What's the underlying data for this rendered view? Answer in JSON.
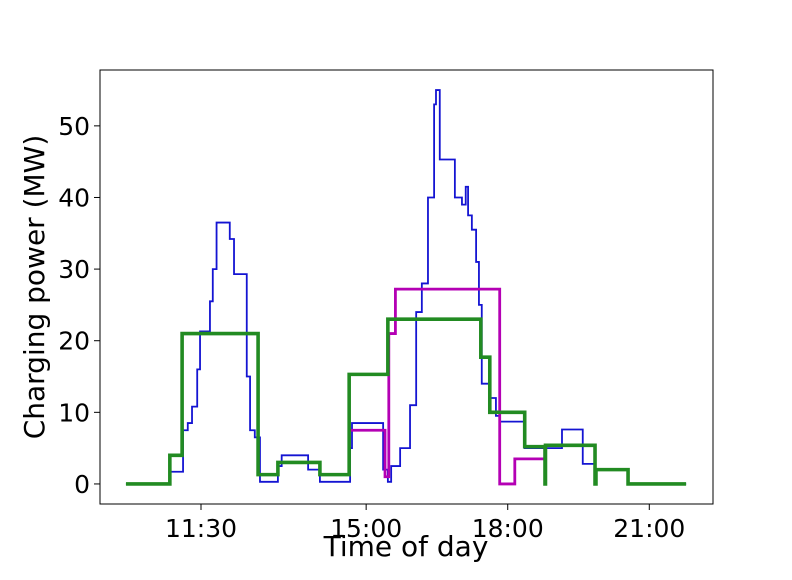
{
  "chart_data": {
    "type": "line",
    "drawstyle": "steps-post",
    "xlabel": "Time of day",
    "ylabel": "Charging power (MW)",
    "xlim": [
      9.36,
      22.35
    ],
    "ylim": [
      -2.8,
      57.8
    ],
    "xticks": [
      {
        "value": 11.5,
        "label": "11:30"
      },
      {
        "value": 15,
        "label": "15:00"
      },
      {
        "value": 18,
        "label": "18:00"
      },
      {
        "value": 21,
        "label": "21:00"
      }
    ],
    "yticks": [
      0,
      10,
      20,
      30,
      40,
      50
    ],
    "series": [
      {
        "color": "#1414d2",
        "width": 1.8,
        "x": [
          9.91,
          10.84,
          11.12,
          11.22,
          11.31,
          11.42,
          11.48,
          11.69,
          11.75,
          11.83,
          12.11,
          12.2,
          12.47,
          12.54,
          12.64,
          12.75,
          13.13,
          13.21,
          13.77,
          14.02,
          14.66,
          14.7,
          15.36,
          15.46,
          15.53,
          15.72,
          15.93,
          16.06,
          16.18,
          16.31,
          16.44,
          16.48,
          16.56,
          16.88,
          17.03,
          17.11,
          17.16,
          17.24,
          17.33,
          17.39,
          17.45,
          17.62,
          17.75,
          17.83,
          18.36,
          19.15,
          19.59,
          19.85,
          20.55,
          21.78
        ],
        "values": [
          0,
          1.7,
          7.5,
          8.5,
          10.8,
          16,
          21.3,
          25.5,
          30,
          36.5,
          34.2,
          29.3,
          15,
          7.5,
          6.5,
          0.3,
          2.5,
          4,
          2,
          0.3,
          5,
          8.5,
          2,
          0.3,
          2.5,
          5,
          11,
          24,
          28,
          40,
          53,
          55,
          45.3,
          40,
          39,
          41.5,
          37.5,
          35.5,
          31,
          25,
          14,
          12,
          9.5,
          8.7,
          5,
          7.6,
          2.8,
          2,
          0,
          0
        ]
      },
      {
        "color": "#b400b4",
        "width": 2.8,
        "x": [
          14.64,
          15.4,
          15.48,
          15.62,
          17.83,
          18.15,
          18.79
        ],
        "values": [
          7.5,
          1,
          21,
          27.2,
          0,
          3.5,
          3.5
        ]
      },
      {
        "color": "#228b22",
        "width": 3.6,
        "x": [
          9.91,
          10.84,
          11.1,
          12.71,
          13.13,
          14.02,
          14.64,
          15.46,
          17.43,
          17.62,
          18.36,
          18.79,
          18.8,
          19.85,
          19.87,
          20.55,
          21.78
        ],
        "values": [
          0,
          4,
          21,
          1.3,
          3,
          1.3,
          15.3,
          23,
          17.7,
          10,
          5.2,
          0,
          5.4,
          0,
          2,
          0,
          0
        ]
      }
    ]
  }
}
